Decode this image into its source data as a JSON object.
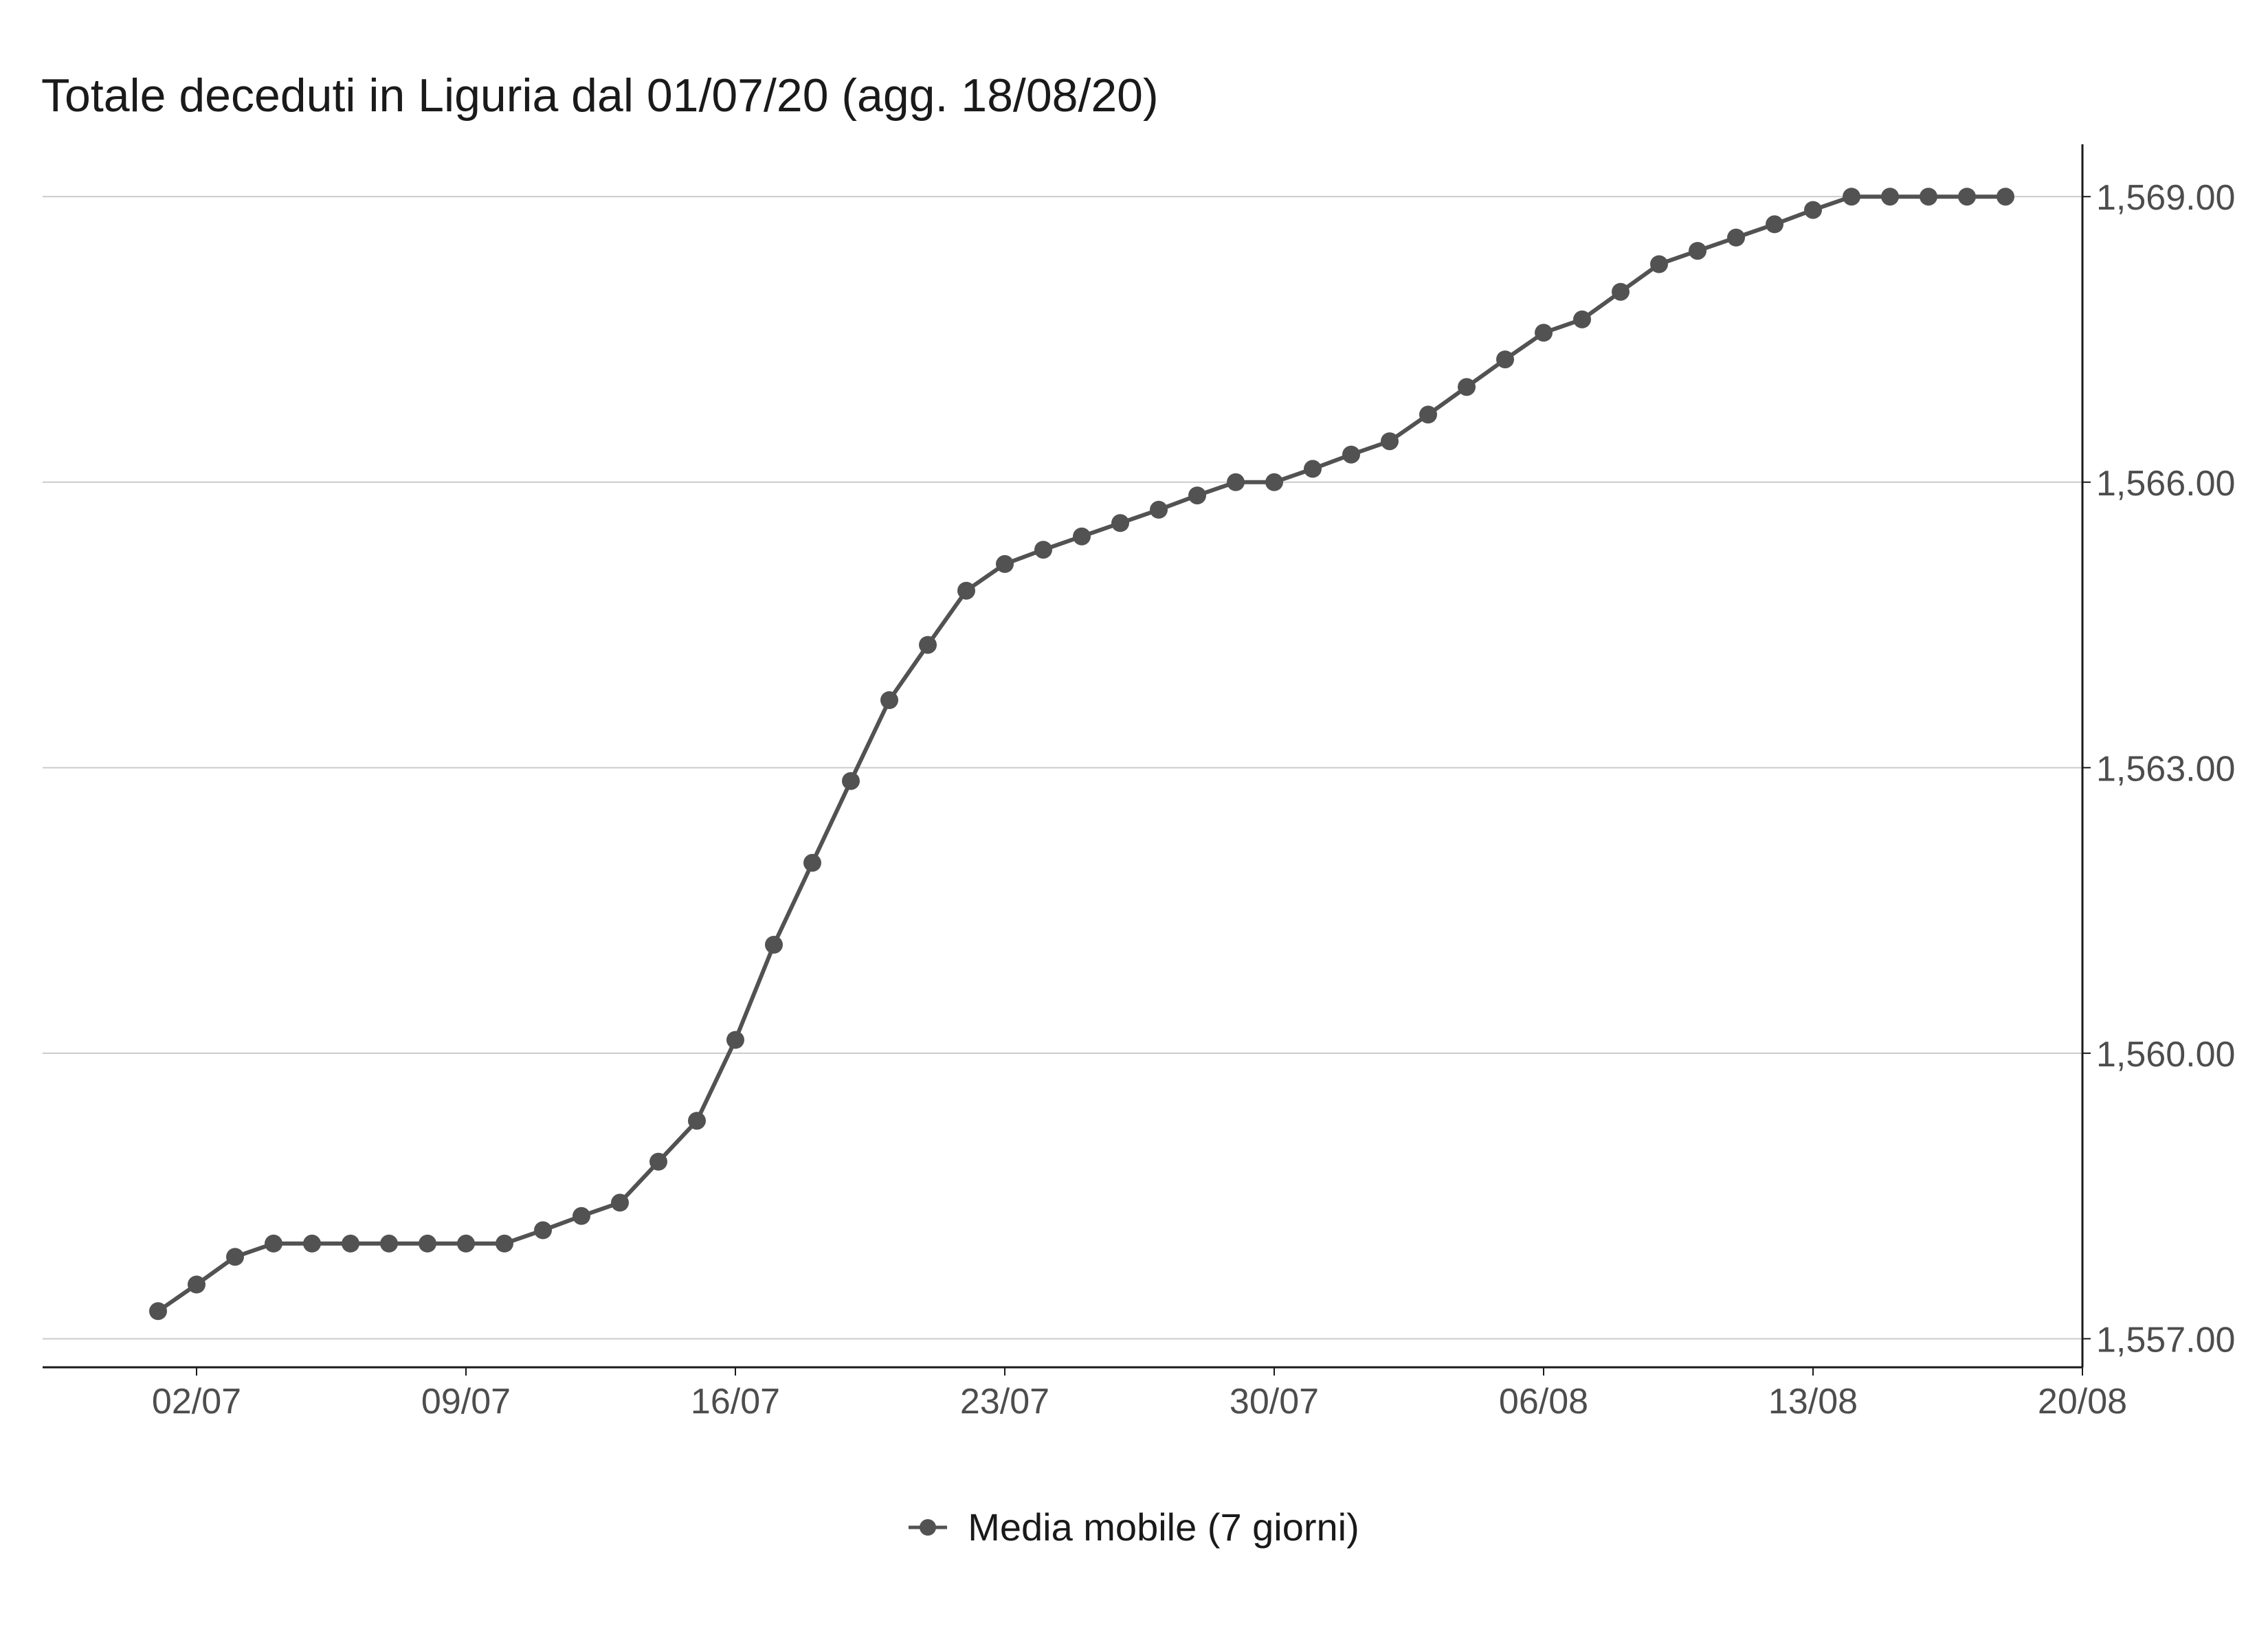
{
  "chart_data": {
    "type": "line",
    "title": "Totale deceduti in Liguria dal 01/07/20 (agg. 18/08/20)",
    "xlabel": "",
    "ylabel": "",
    "x_tick_labels": [
      "02/07",
      "09/07",
      "16/07",
      "23/07",
      "30/07",
      "06/08",
      "13/08",
      "20/08"
    ],
    "y_tick_labels": [
      "1,557.00",
      "1,560.00",
      "1,563.00",
      "1,566.00",
      "1,569.00"
    ],
    "ylim": [
      1556.7,
      1569.55
    ],
    "xlim": [
      "2020-06-28",
      "2020-08-20"
    ],
    "y_axis_position": "right",
    "grid": "horizontal major",
    "legend_position": "bottom",
    "colors": {
      "series": "#525252",
      "grid": "#cccccc",
      "axis": "#1a1a1a",
      "tick_text": "#4d4d4d"
    },
    "series": [
      {
        "name": "Media mobile (7 giorni)",
        "x": [
          "2020-07-01",
          "2020-07-02",
          "2020-07-03",
          "2020-07-04",
          "2020-07-05",
          "2020-07-06",
          "2020-07-07",
          "2020-07-08",
          "2020-07-09",
          "2020-07-10",
          "2020-07-11",
          "2020-07-12",
          "2020-07-13",
          "2020-07-14",
          "2020-07-15",
          "2020-07-16",
          "2020-07-17",
          "2020-07-18",
          "2020-07-19",
          "2020-07-20",
          "2020-07-21",
          "2020-07-22",
          "2020-07-23",
          "2020-07-24",
          "2020-07-25",
          "2020-07-26",
          "2020-07-27",
          "2020-07-28",
          "2020-07-29",
          "2020-07-30",
          "2020-07-31",
          "2020-08-01",
          "2020-08-02",
          "2020-08-03",
          "2020-08-04",
          "2020-08-05",
          "2020-08-06",
          "2020-08-07",
          "2020-08-08",
          "2020-08-09",
          "2020-08-10",
          "2020-08-11",
          "2020-08-12",
          "2020-08-13",
          "2020-08-14",
          "2020-08-15",
          "2020-08-16",
          "2020-08-17",
          "2020-08-18"
        ],
        "values": [
          1557.29,
          1557.57,
          1557.86,
          1558.0,
          1558.0,
          1558.0,
          1558.0,
          1558.0,
          1558.0,
          1558.0,
          1558.14,
          1558.29,
          1558.43,
          1558.86,
          1559.29,
          1560.14,
          1561.14,
          1562.0,
          1562.86,
          1563.71,
          1564.29,
          1564.86,
          1565.14,
          1565.29,
          1565.43,
          1565.57,
          1565.71,
          1565.86,
          1566.0,
          1566.0,
          1566.14,
          1566.29,
          1566.43,
          1566.71,
          1567.0,
          1567.29,
          1567.57,
          1567.71,
          1568.0,
          1568.29,
          1568.43,
          1568.57,
          1568.71,
          1568.86,
          1569.0,
          1569.0,
          1569.0,
          1569.0,
          1569.0
        ]
      }
    ]
  }
}
